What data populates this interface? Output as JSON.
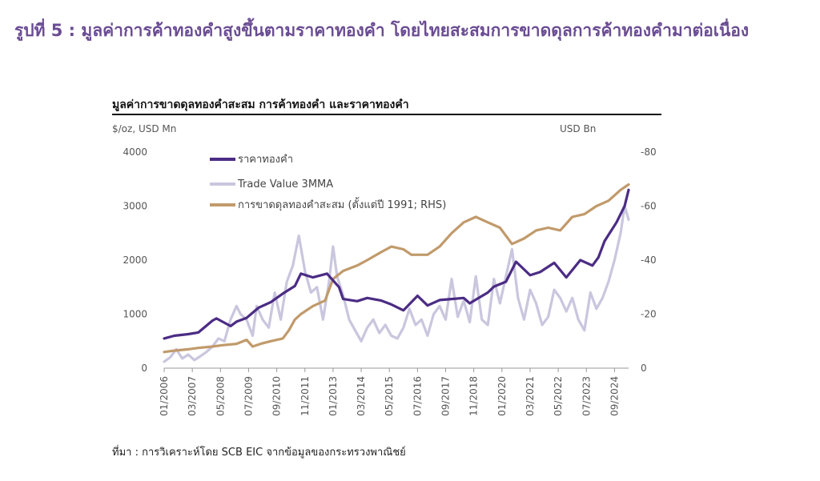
{
  "figure_title": "รูปที่ 5 : มูลค่าการค้าทองคำสูงขึ้นตามราคาทองคำ โดยไทยสะสมการขาดดุลการค้าทองคำมาต่อเนื่อง",
  "source": "ที่มา : การวิเคราะห์โดย SCB EIC จากข้อมูลของกระทรวงพาณิชย์",
  "colors": {
    "title": "#6a4c93",
    "gold_price": "#4b2c84",
    "trade_value": "#c9c6de",
    "deficit": "#c19a6b"
  },
  "chart_data": {
    "type": "line",
    "title": "มูลค่าการขาดดุลทองคำสะสม  การค้าทองคำ  และราคาทองคำ",
    "y_left": {
      "label": "$/oz, USD Mn",
      "min": 0,
      "max": 4000,
      "ticks": [
        "0",
        "1000",
        "2000",
        "3000",
        "4000"
      ]
    },
    "y_right": {
      "label": "USD Bn",
      "min": 0,
      "max": -80,
      "reversed": true,
      "ticks": [
        "0",
        "-20",
        "-40",
        "-60",
        "-80"
      ]
    },
    "x_tick_labels": [
      "01/2006",
      "03/2007",
      "05/2008",
      "07/2009",
      "09/2010",
      "11/2011",
      "01/2013",
      "03/2014",
      "05/2015",
      "07/2016",
      "09/2017",
      "11/2018",
      "01/2020",
      "03/2021",
      "05/2022",
      "07/2023",
      "09/2024"
    ],
    "x_range": [
      "2006-01",
      "2025-04"
    ],
    "legend": [
      "ราคาทองคำ",
      "Trade Value 3MMA",
      "การขาดดุลทองคำสะสม (ตั้งแต่ปี 1991; RHS)"
    ],
    "series": [
      {
        "name": "ราคาทองคำ",
        "axis": "left",
        "points": [
          [
            "2006-01",
            550
          ],
          [
            "2006-06",
            600
          ],
          [
            "2007-01",
            630
          ],
          [
            "2007-06",
            660
          ],
          [
            "2008-01",
            880
          ],
          [
            "2008-03",
            920
          ],
          [
            "2008-10",
            780
          ],
          [
            "2009-01",
            860
          ],
          [
            "2009-06",
            930
          ],
          [
            "2009-12",
            1120
          ],
          [
            "2010-06",
            1220
          ],
          [
            "2010-12",
            1380
          ],
          [
            "2011-06",
            1520
          ],
          [
            "2011-09",
            1750
          ],
          [
            "2012-03",
            1680
          ],
          [
            "2012-10",
            1750
          ],
          [
            "2013-04",
            1500
          ],
          [
            "2013-06",
            1280
          ],
          [
            "2014-01",
            1240
          ],
          [
            "2014-06",
            1300
          ],
          [
            "2015-01",
            1250
          ],
          [
            "2015-06",
            1180
          ],
          [
            "2015-12",
            1070
          ],
          [
            "2016-07",
            1340
          ],
          [
            "2016-12",
            1160
          ],
          [
            "2017-06",
            1260
          ],
          [
            "2017-12",
            1280
          ],
          [
            "2018-06",
            1300
          ],
          [
            "2018-09",
            1200
          ],
          [
            "2019-01",
            1290
          ],
          [
            "2019-06",
            1400
          ],
          [
            "2019-09",
            1510
          ],
          [
            "2020-03",
            1600
          ],
          [
            "2020-08",
            1970
          ],
          [
            "2021-03",
            1720
          ],
          [
            "2021-08",
            1780
          ],
          [
            "2022-03",
            1950
          ],
          [
            "2022-09",
            1680
          ],
          [
            "2023-04",
            2000
          ],
          [
            "2023-10",
            1900
          ],
          [
            "2024-01",
            2050
          ],
          [
            "2024-04",
            2350
          ],
          [
            "2024-10",
            2700
          ],
          [
            "2025-02",
            3000
          ],
          [
            "2025-04",
            3300
          ]
        ]
      },
      {
        "name": "Trade Value 3MMA",
        "axis": "left",
        "points": [
          [
            "2006-01",
            120
          ],
          [
            "2006-04",
            200
          ],
          [
            "2006-07",
            350
          ],
          [
            "2006-10",
            180
          ],
          [
            "2007-01",
            250
          ],
          [
            "2007-04",
            150
          ],
          [
            "2007-07",
            220
          ],
          [
            "2007-10",
            300
          ],
          [
            "2008-01",
            400
          ],
          [
            "2008-04",
            550
          ],
          [
            "2008-07",
            500
          ],
          [
            "2008-10",
            900
          ],
          [
            "2009-01",
            1150
          ],
          [
            "2009-03",
            1000
          ],
          [
            "2009-06",
            900
          ],
          [
            "2009-09",
            600
          ],
          [
            "2009-11",
            1150
          ],
          [
            "2010-02",
            900
          ],
          [
            "2010-05",
            750
          ],
          [
            "2010-08",
            1400
          ],
          [
            "2010-11",
            900
          ],
          [
            "2011-02",
            1600
          ],
          [
            "2011-05",
            1900
          ],
          [
            "2011-08",
            2450
          ],
          [
            "2011-11",
            1800
          ],
          [
            "2012-02",
            1400
          ],
          [
            "2012-05",
            1500
          ],
          [
            "2012-08",
            900
          ],
          [
            "2012-11",
            1600
          ],
          [
            "2013-01",
            2250
          ],
          [
            "2013-03",
            1700
          ],
          [
            "2013-06",
            1350
          ],
          [
            "2013-09",
            900
          ],
          [
            "2013-12",
            700
          ],
          [
            "2014-03",
            500
          ],
          [
            "2014-06",
            750
          ],
          [
            "2014-09",
            900
          ],
          [
            "2014-12",
            650
          ],
          [
            "2015-03",
            800
          ],
          [
            "2015-06",
            600
          ],
          [
            "2015-09",
            550
          ],
          [
            "2015-12",
            750
          ],
          [
            "2016-03",
            1100
          ],
          [
            "2016-06",
            800
          ],
          [
            "2016-09",
            900
          ],
          [
            "2016-12",
            600
          ],
          [
            "2017-03",
            1000
          ],
          [
            "2017-06",
            1150
          ],
          [
            "2017-09",
            900
          ],
          [
            "2017-12",
            1650
          ],
          [
            "2018-03",
            950
          ],
          [
            "2018-06",
            1250
          ],
          [
            "2018-09",
            850
          ],
          [
            "2018-12",
            1700
          ],
          [
            "2019-03",
            900
          ],
          [
            "2019-06",
            800
          ],
          [
            "2019-09",
            1650
          ],
          [
            "2019-12",
            1200
          ],
          [
            "2020-03",
            1700
          ],
          [
            "2020-06",
            2200
          ],
          [
            "2020-09",
            1300
          ],
          [
            "2020-12",
            900
          ],
          [
            "2021-03",
            1450
          ],
          [
            "2021-06",
            1200
          ],
          [
            "2021-09",
            800
          ],
          [
            "2021-12",
            950
          ],
          [
            "2022-03",
            1450
          ],
          [
            "2022-06",
            1300
          ],
          [
            "2022-09",
            1050
          ],
          [
            "2022-12",
            1300
          ],
          [
            "2023-03",
            900
          ],
          [
            "2023-06",
            700
          ],
          [
            "2023-09",
            1400
          ],
          [
            "2023-12",
            1100
          ],
          [
            "2024-03",
            1300
          ],
          [
            "2024-06",
            1600
          ],
          [
            "2024-09",
            2000
          ],
          [
            "2024-12",
            2500
          ],
          [
            "2025-02",
            3000
          ],
          [
            "2025-04",
            2750
          ]
        ]
      },
      {
        "name": "การขาดดุลทองคำสะสม (ตั้งแต่ปี 1991; RHS)",
        "axis": "right",
        "points": [
          [
            "2006-01",
            -6
          ],
          [
            "2006-06",
            -6.5
          ],
          [
            "2007-01",
            -7
          ],
          [
            "2007-06",
            -7.5
          ],
          [
            "2008-01",
            -8
          ],
          [
            "2008-06",
            -8.5
          ],
          [
            "2009-01",
            -9
          ],
          [
            "2009-06",
            -10.5
          ],
          [
            "2009-09",
            -8
          ],
          [
            "2010-01",
            -9
          ],
          [
            "2010-06",
            -10
          ],
          [
            "2010-12",
            -11
          ],
          [
            "2011-03",
            -14
          ],
          [
            "2011-06",
            -18
          ],
          [
            "2011-09",
            -20
          ],
          [
            "2012-03",
            -23
          ],
          [
            "2012-09",
            -25
          ],
          [
            "2013-01",
            -33
          ],
          [
            "2013-06",
            -36
          ],
          [
            "2014-01",
            -38
          ],
          [
            "2014-06",
            -40
          ],
          [
            "2015-01",
            -43
          ],
          [
            "2015-06",
            -45
          ],
          [
            "2015-12",
            -44
          ],
          [
            "2016-04",
            -42
          ],
          [
            "2016-12",
            -42
          ],
          [
            "2017-06",
            -45
          ],
          [
            "2017-12",
            -50
          ],
          [
            "2018-06",
            -54
          ],
          [
            "2018-12",
            -56
          ],
          [
            "2019-06",
            -54
          ],
          [
            "2019-12",
            -52
          ],
          [
            "2020-06",
            -46
          ],
          [
            "2020-12",
            -48
          ],
          [
            "2021-06",
            -51
          ],
          [
            "2021-12",
            -52
          ],
          [
            "2022-06",
            -51
          ],
          [
            "2022-12",
            -56
          ],
          [
            "2023-06",
            -57
          ],
          [
            "2023-12",
            -60
          ],
          [
            "2024-06",
            -62
          ],
          [
            "2024-12",
            -66
          ],
          [
            "2025-04",
            -68
          ]
        ]
      }
    ]
  }
}
